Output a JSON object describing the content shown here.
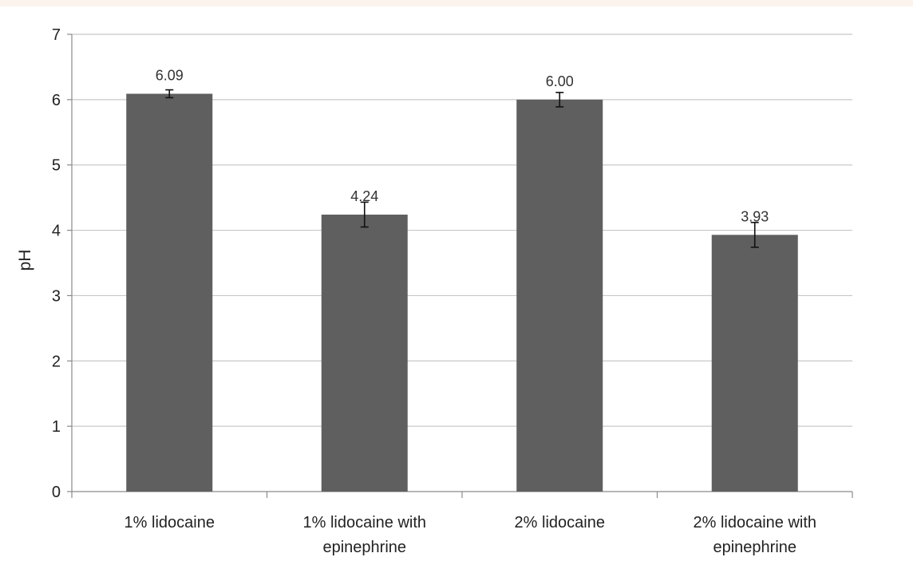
{
  "chart_data": {
    "type": "bar",
    "title": "",
    "xlabel": "",
    "ylabel": "pH",
    "ylim": [
      0,
      7
    ],
    "yticks": [
      0,
      1,
      2,
      3,
      4,
      5,
      6,
      7
    ],
    "grid": true,
    "legend": "none",
    "bar_color": "#5f5f5f",
    "categories": [
      [
        "1% lidocaine"
      ],
      [
        "1% lidocaine with",
        "epinephrine"
      ],
      [
        "2% lidocaine"
      ],
      [
        "2% lidocaine with",
        "epinephrine"
      ]
    ],
    "values": [
      6.09,
      4.24,
      6.0,
      3.93
    ],
    "value_labels": [
      "6.09",
      "4.24",
      "6.00",
      "3.93"
    ],
    "error": [
      0.06,
      0.19,
      0.11,
      0.19
    ]
  }
}
